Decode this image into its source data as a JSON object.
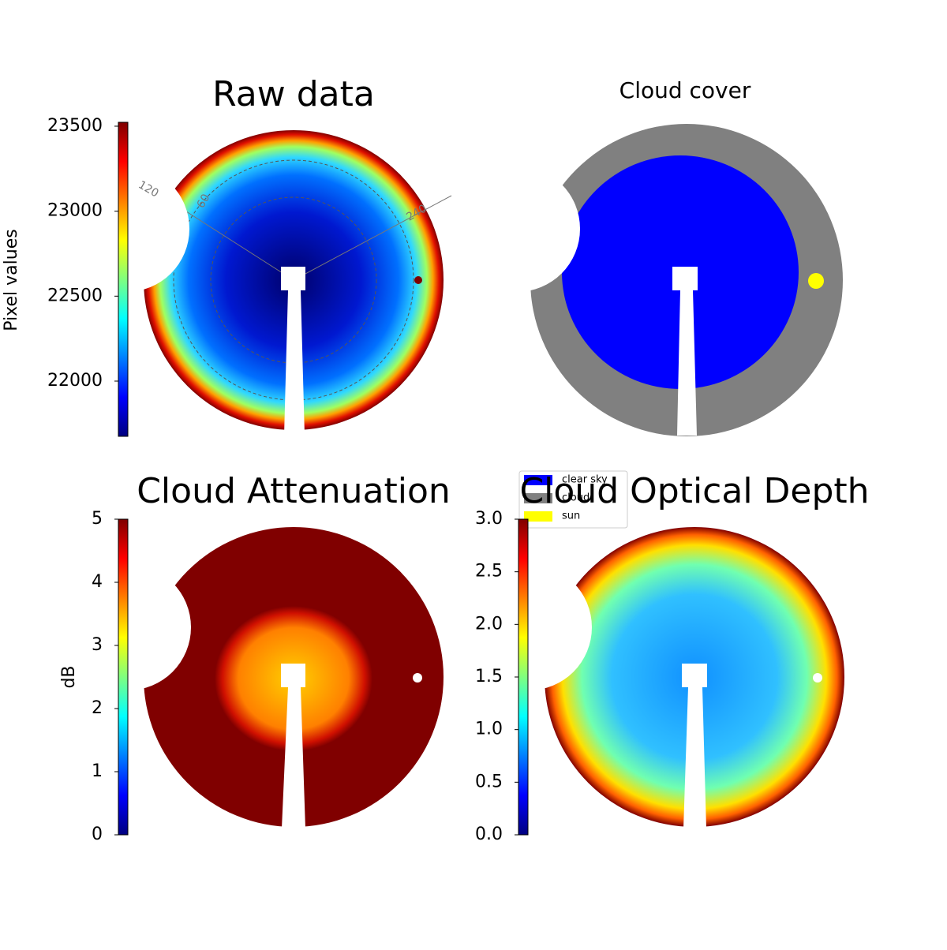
{
  "chart_data": [
    {
      "type": "image",
      "title": "Raw data",
      "ylabel": "Pixel values",
      "colormap": "jet",
      "ylim": [
        21675,
        23523
      ],
      "yticks": [
        22000,
        22500,
        23000,
        23500
      ],
      "annotations": [
        "120",
        "60",
        "240"
      ]
    },
    {
      "type": "image",
      "title": "Cloud cover",
      "series": [
        {
          "name": "clear sky",
          "color": "#0000ff"
        },
        {
          "name": "cloud",
          "color": "#808080"
        },
        {
          "name": "sun",
          "color": "#ffff00"
        }
      ]
    },
    {
      "type": "image",
      "title": "Cloud Attenuation",
      "ylabel": "dB",
      "colormap": "jet",
      "ylim": [
        0,
        5
      ],
      "yticks": [
        0,
        1,
        2,
        3,
        4,
        5
      ]
    },
    {
      "type": "image",
      "title": "Cloud Optical Depth",
      "colormap": "jet",
      "ylim": [
        0,
        3
      ],
      "yticks": [
        {
          "value": 0,
          "label": "0.0"
        },
        0.5,
        {
          "value": 1,
          "label": "1.0"
        },
        1.5,
        {
          "value": 2,
          "label": "2.0"
        },
        2.5,
        {
          "value": 3,
          "label": "3.0"
        }
      ]
    }
  ]
}
